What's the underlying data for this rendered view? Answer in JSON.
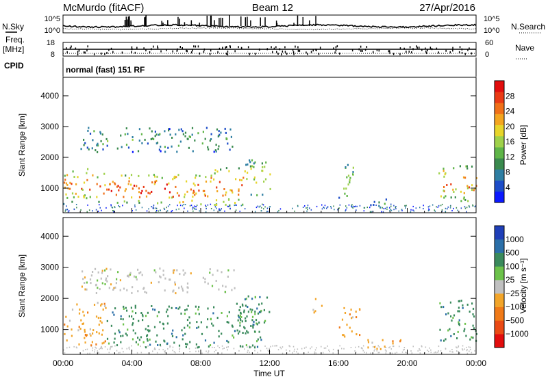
{
  "header": {
    "station": "McMurdo (fitACF)",
    "beam": "Beam 12",
    "date": "27/Apr/2016"
  },
  "top_strips": {
    "nsky_label": "N.Sky",
    "nsky_ticks": [
      "10^5",
      "10^0"
    ],
    "nsearch_label": "N.Search",
    "nsearch_ticks": [
      "10^5",
      "10^0"
    ],
    "freq_label_1": "Freq.",
    "freq_label_2": "[MHz]",
    "freq_ticks": [
      "18",
      "8"
    ],
    "nave_label": "Nave",
    "nave_ticks": [
      "60",
      "0"
    ],
    "cpid_label": "CPID",
    "cpid_text": "normal (fast) 151 RF"
  },
  "chart_data": [
    {
      "type": "heatmap",
      "name": "power-panel",
      "ylabel": "Slant Range [km]",
      "xlabel": "",
      "y_ticks": [
        "1000",
        "2000",
        "3000",
        "4000"
      ],
      "ylim": [
        200,
        4600
      ],
      "xlim": [
        0,
        24
      ],
      "colorbar": {
        "label": "Power [dB]",
        "ticks": [
          "4",
          "8",
          "12",
          "16",
          "20",
          "24",
          "28"
        ],
        "colors": [
          "#0b19ff",
          "#1d4dc8",
          "#2f7fa3",
          "#3a8a4e",
          "#5fb548",
          "#9fd14a",
          "#e7d52a",
          "#f3a51f",
          "#f07018",
          "#ea3a14",
          "#e20d0d"
        ]
      },
      "regions": [
        {
          "t0": 0.0,
          "t1": 1.8,
          "r0": 500,
          "r1": 1700,
          "level": 0.8
        },
        {
          "t0": 1.8,
          "t1": 4.0,
          "r0": 550,
          "r1": 1500,
          "level": 0.9
        },
        {
          "t0": 4.0,
          "t1": 8.5,
          "r0": 500,
          "r1": 1500,
          "level": 0.95
        },
        {
          "t0": 8.5,
          "t1": 10.5,
          "r0": 450,
          "r1": 1700,
          "level": 0.85
        },
        {
          "t0": 10.5,
          "t1": 12.0,
          "r0": 800,
          "r1": 2000,
          "level": 0.6
        },
        {
          "t0": 16.0,
          "t1": 17.0,
          "r0": 700,
          "r1": 1800,
          "level": 0.55
        },
        {
          "t0": 21.8,
          "t1": 24.0,
          "r0": 600,
          "r1": 1800,
          "level": 0.8
        },
        {
          "t0": 1.0,
          "t1": 10.0,
          "r0": 2200,
          "r1": 3000,
          "level": 0.35
        },
        {
          "t0": 17.5,
          "t1": 19.0,
          "r0": 400,
          "r1": 700,
          "level": 0.3
        }
      ]
    },
    {
      "type": "heatmap",
      "name": "velocity-panel",
      "ylabel": "Slant Range [km]",
      "xlabel": "Time UT",
      "x_ticks": [
        "00:00",
        "04:00",
        "08:00",
        "12:00",
        "16:00",
        "20:00",
        "00:00"
      ],
      "y_ticks": [
        "1000",
        "2000",
        "3000",
        "4000"
      ],
      "ylim": [
        200,
        4600
      ],
      "xlim": [
        0,
        24
      ],
      "colorbar": {
        "label": "Velocity [m s⁻¹]",
        "ticks": [
          "1000",
          "500",
          "100",
          "25",
          "−25",
          "−100",
          "−500",
          "−1000"
        ],
        "colors": [
          "#1f3fb8",
          "#2b6fa8",
          "#3a8a5c",
          "#6cc24a",
          "#c0c0c0",
          "#f2a52a",
          "#f07a18",
          "#ea4a14",
          "#e20d0d"
        ]
      },
      "regions": [
        {
          "t0": 0.0,
          "t1": 2.5,
          "r0": 500,
          "r1": 1900,
          "v": -100
        },
        {
          "t0": 2.5,
          "t1": 11.5,
          "r0": 450,
          "r1": 1800,
          "v": 100
        },
        {
          "t0": 10.0,
          "t1": 12.0,
          "r0": 900,
          "r1": 2100,
          "v": 100
        },
        {
          "t0": 14.5,
          "t1": 15.0,
          "r0": 1500,
          "r1": 2100,
          "v": -100
        },
        {
          "t0": 16.0,
          "t1": 17.2,
          "r0": 800,
          "r1": 1800,
          "v": -100
        },
        {
          "t0": 21.8,
          "t1": 24.0,
          "r0": 600,
          "r1": 2000,
          "v": 100
        },
        {
          "t0": 1.0,
          "t1": 10.0,
          "r0": 2200,
          "r1": 3000,
          "v": 25
        },
        {
          "t0": 17.5,
          "t1": 20.0,
          "r0": 400,
          "r1": 700,
          "v": -100
        }
      ]
    }
  ]
}
